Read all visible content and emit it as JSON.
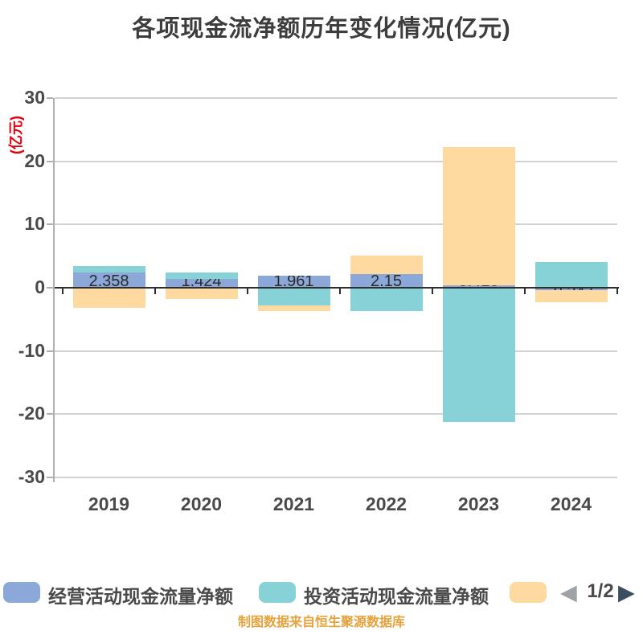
{
  "header": {
    "title": "各项现金流净额历年变化情况(亿元)"
  },
  "chart_data": {
    "type": "bar",
    "style": "overlapped-bars",
    "title": "各项现金流净额历年变化情况(亿元)",
    "ylabel": "(亿元)",
    "xlabel": "",
    "ylim": [
      -30,
      30
    ],
    "yticks": [
      30,
      20,
      10,
      0,
      -10,
      -20,
      -30
    ],
    "grid": "horizontal",
    "legend_position": "bottom",
    "categories": [
      "2019",
      "2020",
      "2021",
      "2022",
      "2023",
      "2024"
    ],
    "series": [
      {
        "name": "经营活动现金流量净额",
        "color": "#8CA8D9",
        "values": [
          2.358,
          1.424,
          1.961,
          2.15,
          0.418,
          -0.347
        ],
        "labels": [
          "2.358",
          "1.424",
          "1.961",
          "2.15",
          "0.418",
          "-0.347"
        ],
        "labels_shown": true
      },
      {
        "name": "投资活动现金流量净额",
        "color": "#87D2D6",
        "values": [
          3.43,
          2.42,
          -2.8,
          -3.69,
          -21.2,
          4.07
        ],
        "labels_shown": false
      },
      {
        "name": "",
        "color": "#FED9A0",
        "values": [
          -3.18,
          -1.78,
          -3.69,
          5.08,
          22.2,
          -2.29
        ],
        "labels_shown": false
      }
    ]
  },
  "legend": {
    "items": [
      {
        "label": "经营活动现金流量净额",
        "color": "#8CA8D9"
      },
      {
        "label": "投资活动现金流量净额",
        "color": "#87D2D6"
      },
      {
        "label": "",
        "color": "#FED9A0"
      }
    ],
    "pagination": {
      "prev_icon": "◀",
      "page": "1/2",
      "next_icon": "▶"
    }
  },
  "footer": {
    "text": "制图数据来自恒生聚源数据库"
  },
  "colors": {
    "title_text": "#3d3d3d",
    "axis_text": "#4a4a4a",
    "y_unit_text": "#e60012",
    "gridline": "#d2d2d2",
    "zero_line": "#2f2f2f",
    "axis_line": "#b0b0b0",
    "footer_text": "#e6a23c",
    "pager_prev": "#9ea3a8",
    "pager_next": "#3b4f61"
  }
}
